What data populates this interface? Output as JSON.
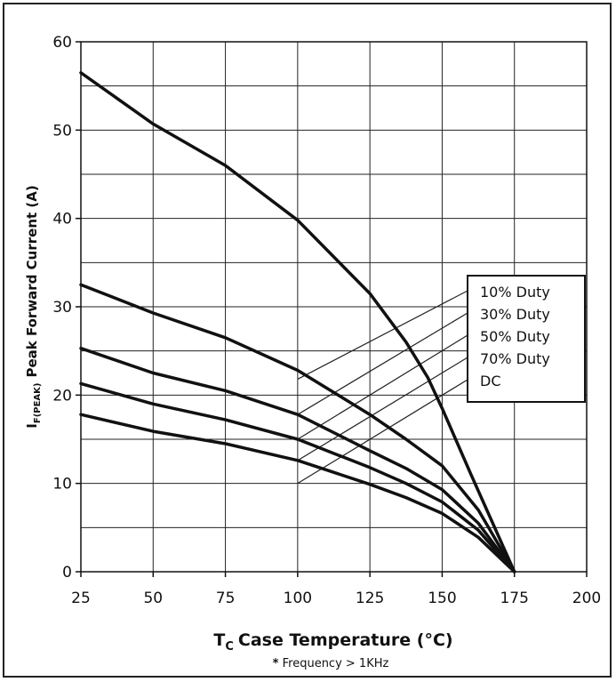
{
  "chart_data": {
    "type": "line",
    "xlabel": {
      "main": "T",
      "sub": "C",
      "rest": "Case Temperature (°C)"
    },
    "ylabel": {
      "main": "I",
      "sub": "F(PEAK)",
      "rest": "Peak Forward Current (A)"
    },
    "note": {
      "star": "*",
      "text": "Frequency > 1KHz"
    },
    "xlim": [
      25,
      200
    ],
    "ylim": [
      0,
      60
    ],
    "xticks": [
      "25",
      "50",
      "75",
      "100",
      "125",
      "150",
      "175",
      "200"
    ],
    "yticks": [
      "0",
      "10",
      "20",
      "30",
      "40",
      "50",
      "60"
    ],
    "grid": true,
    "legend": [
      "10% Duty",
      "30% Duty",
      "50% Duty",
      "70% Duty",
      "DC"
    ],
    "legend_position": "right-center",
    "series": [
      {
        "name": "10% Duty",
        "points": [
          [
            25,
            56.5
          ],
          [
            50,
            50.7
          ],
          [
            75,
            46.0
          ],
          [
            100,
            39.8
          ],
          [
            125,
            31.5
          ],
          [
            137.5,
            26.0
          ],
          [
            145,
            22.0
          ],
          [
            150,
            18.5
          ],
          [
            160,
            11.0
          ],
          [
            175,
            0
          ]
        ]
      },
      {
        "name": "30% Duty",
        "points": [
          [
            25,
            32.5
          ],
          [
            50,
            29.3
          ],
          [
            75,
            26.5
          ],
          [
            100,
            22.8
          ],
          [
            125,
            17.8
          ],
          [
            137.5,
            15.0
          ],
          [
            150,
            12.0
          ],
          [
            162.5,
            7.0
          ],
          [
            175,
            0
          ]
        ]
      },
      {
        "name": "50% Duty",
        "points": [
          [
            25,
            25.3
          ],
          [
            50,
            22.5
          ],
          [
            75,
            20.5
          ],
          [
            100,
            17.8
          ],
          [
            125,
            13.7
          ],
          [
            137.5,
            11.7
          ],
          [
            150,
            9.3
          ],
          [
            162.5,
            5.5
          ],
          [
            175,
            0
          ]
        ]
      },
      {
        "name": "70% Duty",
        "points": [
          [
            25,
            21.3
          ],
          [
            50,
            19.0
          ],
          [
            75,
            17.2
          ],
          [
            100,
            15.0
          ],
          [
            125,
            11.8
          ],
          [
            137.5,
            10.0
          ],
          [
            150,
            7.9
          ],
          [
            162.5,
            4.7
          ],
          [
            175,
            0
          ]
        ]
      },
      {
        "name": "DC",
        "points": [
          [
            25,
            17.8
          ],
          [
            50,
            15.9
          ],
          [
            75,
            14.5
          ],
          [
            100,
            12.6
          ],
          [
            125,
            9.9
          ],
          [
            137.5,
            8.4
          ],
          [
            150,
            6.6
          ],
          [
            162.5,
            3.9
          ],
          [
            175,
            0
          ]
        ]
      }
    ],
    "leader_lines": [
      {
        "from": [
          100,
          21.8
        ],
        "to_legend": 0
      },
      {
        "from": [
          100,
          17.8
        ],
        "to_legend": 1
      },
      {
        "from": [
          100,
          15.0
        ],
        "to_legend": 2
      },
      {
        "from": [
          100,
          12.6
        ],
        "to_legend": 3
      },
      {
        "from": [
          100,
          10.0
        ],
        "to_legend": 4
      }
    ]
  }
}
